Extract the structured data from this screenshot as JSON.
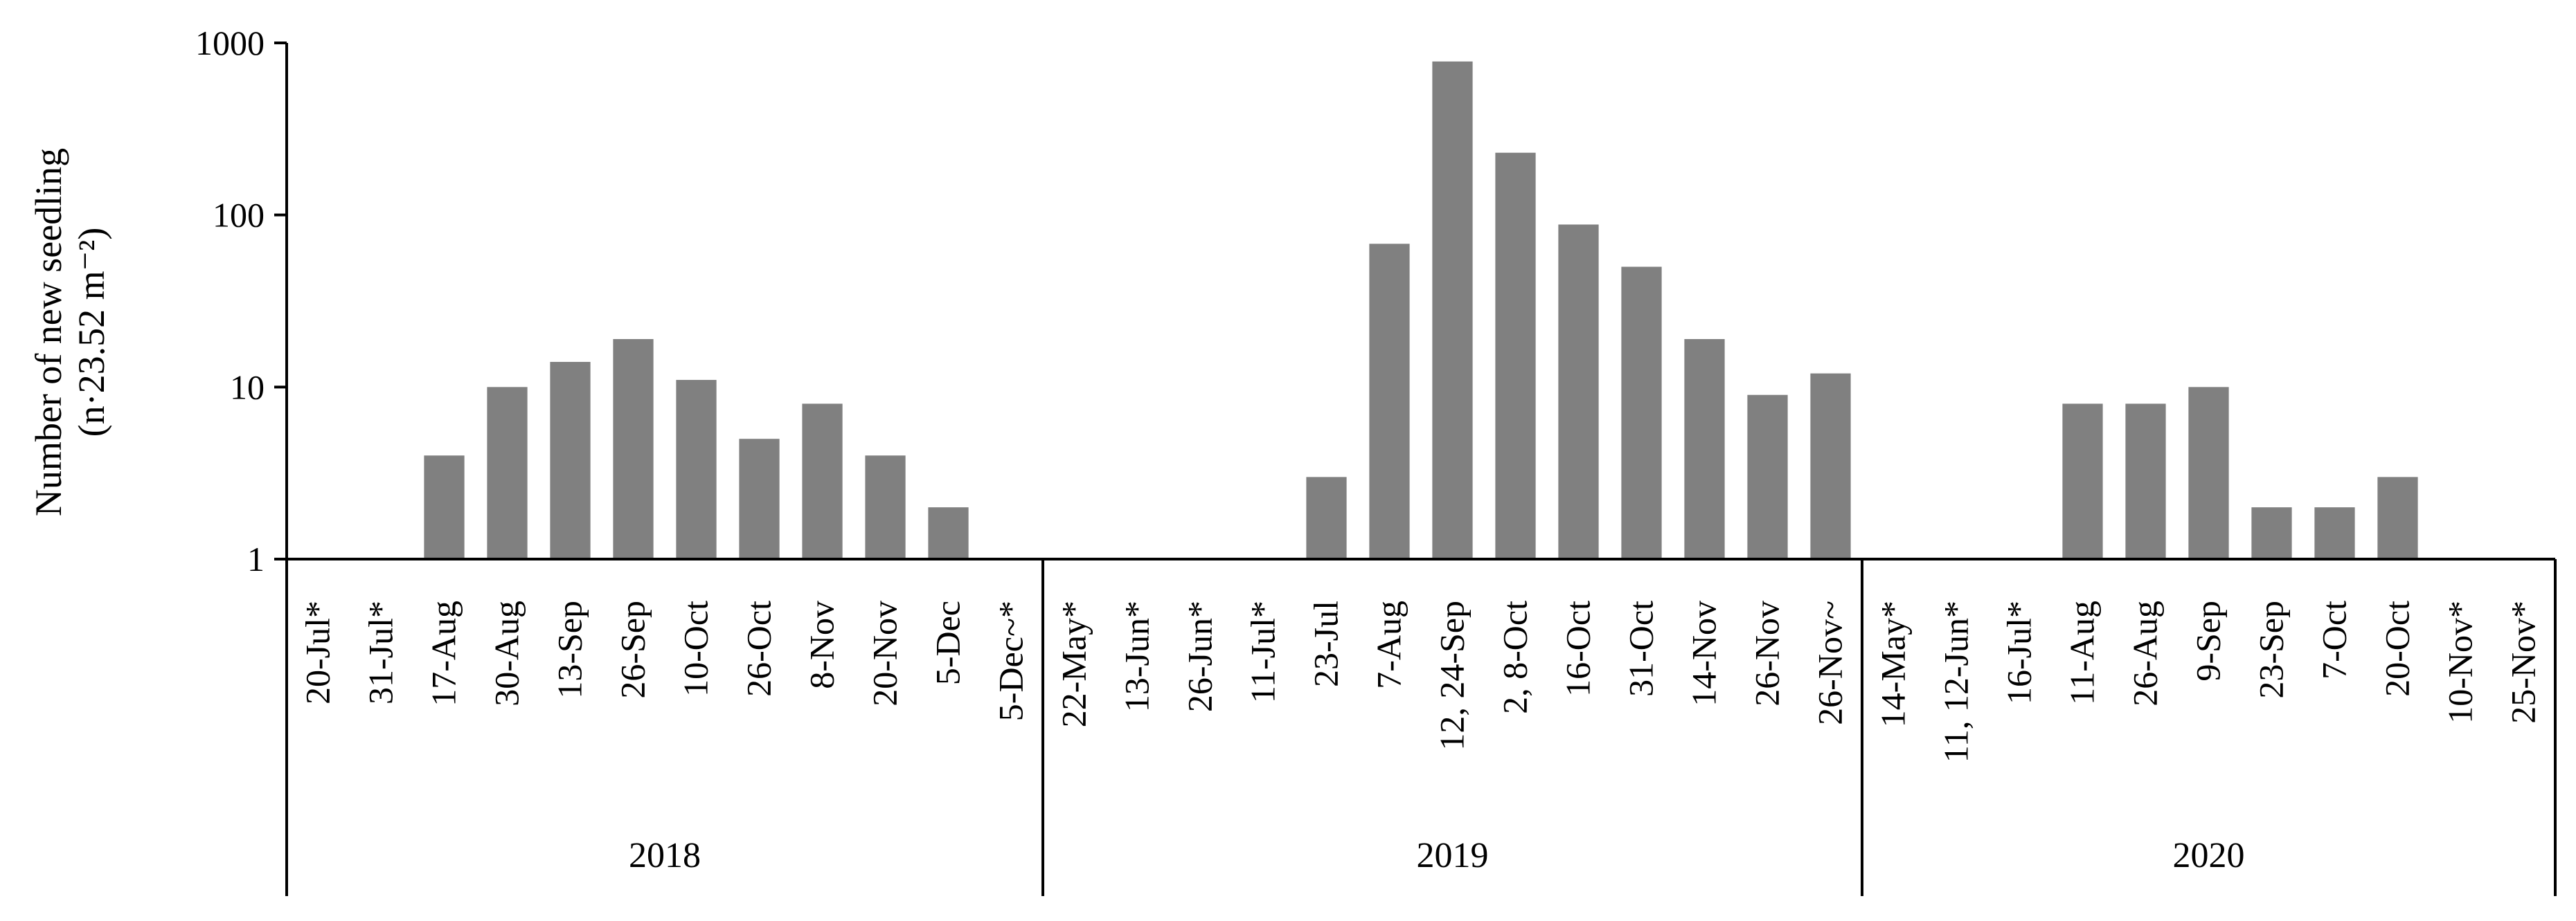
{
  "chart_data": {
    "type": "bar",
    "ylabel": "Number of new seedling",
    "ylabel_unit": "(n·23.52 m⁻²)",
    "yscale": "log",
    "ylim": [
      1,
      1000
    ],
    "yticks": [
      "1",
      "10",
      "100",
      "1000"
    ],
    "bar_color": "#808080",
    "categories": [
      "20-Jul*",
      "31-Jul*",
      "17-Aug",
      "30-Aug",
      "13-Sep",
      "26-Sep",
      "10-Oct",
      "26-Oct",
      "8-Nov",
      "20-Nov",
      "5-Dec",
      "5-Dec~*",
      "22-May*",
      "13-Jun*",
      "26-Jun*",
      "11-Jul*",
      "23-Jul",
      "7-Aug",
      "12, 24-Sep",
      "2, 8-Oct",
      "16-Oct",
      "31-Oct",
      "14-Nov",
      "26-Nov",
      "26-Nov~",
      "14-May*",
      "11, 12-Jun*",
      "16-Jul*",
      "11-Aug",
      "26-Aug",
      "9-Sep",
      "23-Sep",
      "7-Oct",
      "20-Oct",
      "10-Nov*",
      "25-Nov*"
    ],
    "values": [
      null,
      null,
      4,
      10,
      14,
      19,
      11,
      5,
      8,
      4,
      2,
      null,
      null,
      null,
      null,
      null,
      3,
      68,
      780,
      230,
      88,
      50,
      19,
      9,
      12,
      null,
      null,
      null,
      8,
      8,
      10,
      2,
      2,
      3,
      null,
      null
    ],
    "groups": [
      {
        "label": "2018",
        "count": 12
      },
      {
        "label": "2019",
        "count": 13
      },
      {
        "label": "2020",
        "count": 11
      }
    ]
  }
}
